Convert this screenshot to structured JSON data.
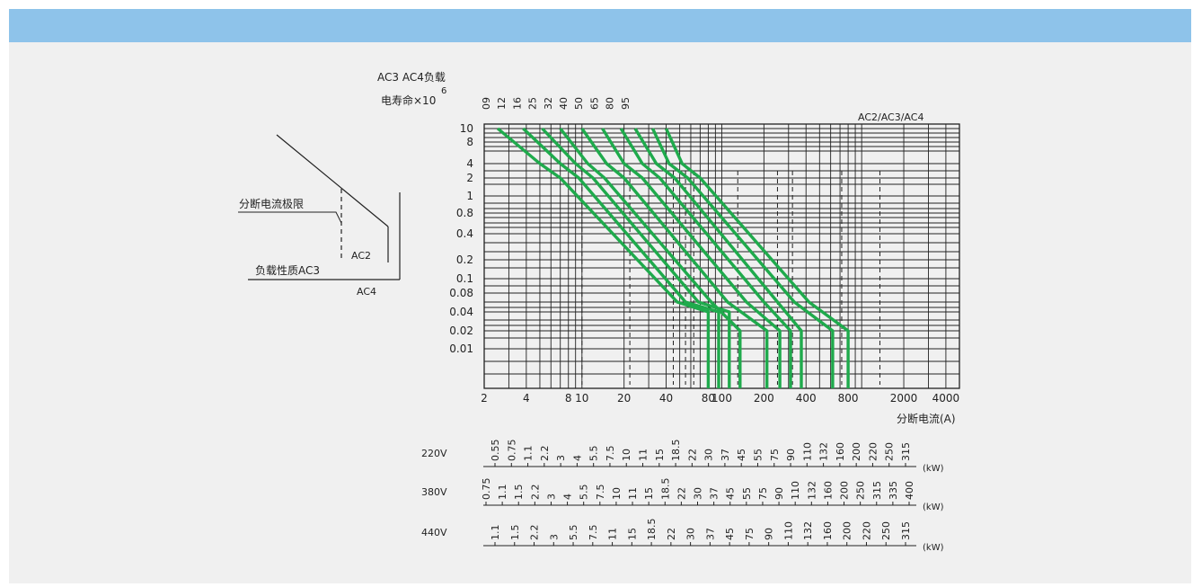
{
  "chart_data": {
    "type": "line",
    "title": "AC2/AC3/AC4",
    "y_title_1": "AC3  AC4负载",
    "y_title_2": "电寿命×10",
    "y_title_exp": "6",
    "xlabel": "分断电流(A)",
    "x_scale": "log",
    "xlim": [
      2,
      5000
    ],
    "y_ticks": [
      "10",
      "8",
      "4",
      "2",
      "1",
      "0.8",
      "0.4",
      "0.2",
      "0.1",
      "0.08",
      "0.04",
      "0.02",
      "0.01"
    ],
    "x_ticks": [
      {
        "v": 2,
        "label": "2"
      },
      {
        "v": 4,
        "label": "4"
      },
      {
        "v": 8,
        "label": "8"
      },
      {
        "v": 10,
        "label": "10"
      },
      {
        "v": 20,
        "label": "20"
      },
      {
        "v": 40,
        "label": "40"
      },
      {
        "v": 80,
        "label": "80"
      },
      {
        "v": 100,
        "label": "100"
      },
      {
        "v": 200,
        "label": "200"
      },
      {
        "v": 400,
        "label": "400"
      },
      {
        "v": 800,
        "label": "800"
      },
      {
        "v": 2000,
        "label": "2000"
      },
      {
        "v": 4000,
        "label": "4000"
      }
    ],
    "ratings": [
      "09",
      "12",
      "16",
      "25",
      "32",
      "40",
      "50",
      "65",
      "80",
      "95"
    ],
    "grid": true,
    "series_color": "#1faa4c",
    "series": [
      {
        "rating": "09",
        "points": [
          [
            2.5,
            10
          ],
          [
            5,
            4
          ],
          [
            7,
            2
          ],
          [
            48,
            0.06
          ],
          [
            80,
            0.04
          ],
          [
            80,
            0.0
          ]
        ]
      },
      {
        "rating": "12",
        "points": [
          [
            3.8,
            10
          ],
          [
            7,
            4
          ],
          [
            9.5,
            2
          ],
          [
            55,
            0.06
          ],
          [
            95,
            0.04
          ],
          [
            95,
            0.0
          ]
        ]
      },
      {
        "rating": "16",
        "points": [
          [
            5.2,
            10
          ],
          [
            9,
            4
          ],
          [
            12,
            2
          ],
          [
            68,
            0.06
          ],
          [
            113,
            0.04
          ],
          [
            113,
            0.0
          ]
        ]
      },
      {
        "rating": "25",
        "points": [
          [
            7,
            10
          ],
          [
            11,
            4
          ],
          [
            14.5,
            2
          ],
          [
            84,
            0.06
          ],
          [
            135,
            0.02
          ],
          [
            135,
            0.0
          ]
        ]
      },
      {
        "rating": "32",
        "points": [
          [
            10,
            10
          ],
          [
            15,
            4
          ],
          [
            20,
            2
          ],
          [
            110,
            0.06
          ],
          [
            210,
            0.02
          ],
          [
            210,
            0.0
          ]
        ]
      },
      {
        "rating": "40",
        "points": [
          [
            14,
            10
          ],
          [
            20,
            4
          ],
          [
            27,
            2
          ],
          [
            150,
            0.06
          ],
          [
            260,
            0.02
          ],
          [
            260,
            0.0
          ]
        ]
      },
      {
        "rating": "50",
        "points": [
          [
            19,
            10
          ],
          [
            27,
            4
          ],
          [
            36,
            2
          ],
          [
            200,
            0.06
          ],
          [
            310,
            0.02
          ],
          [
            310,
            0.0
          ]
        ]
      },
      {
        "rating": "65",
        "points": [
          [
            24,
            10
          ],
          [
            34,
            4
          ],
          [
            46,
            2
          ],
          [
            250,
            0.06
          ],
          [
            370,
            0.02
          ],
          [
            370,
            0.0
          ]
        ]
      },
      {
        "rating": "80",
        "points": [
          [
            32,
            10
          ],
          [
            42,
            4
          ],
          [
            57,
            2
          ],
          [
            330,
            0.06
          ],
          [
            620,
            0.02
          ],
          [
            620,
            0.0
          ]
        ]
      },
      {
        "rating": "95",
        "points": [
          [
            40,
            10
          ],
          [
            52,
            4
          ],
          [
            70,
            2
          ],
          [
            420,
            0.06
          ],
          [
            800,
            0.02
          ],
          [
            800,
            0.0
          ]
        ]
      }
    ],
    "power_scales": [
      {
        "voltage": "220V",
        "unit": "(kW)",
        "values": [
          "0.55",
          "0.75",
          "1.1",
          "2.2",
          "3",
          "4",
          "5.5",
          "7.5",
          "10",
          "11",
          "15",
          "18.5",
          "22",
          "30",
          "37",
          "45",
          "55",
          "75",
          "90",
          "110",
          "132",
          "160",
          "200",
          "220",
          "250",
          "315"
        ]
      },
      {
        "voltage": "380V",
        "unit": "(kW)",
        "values": [
          "0.75",
          "1.1",
          "1.5",
          "2.2",
          "3",
          "4",
          "5.5",
          "7.5",
          "10",
          "11",
          "15",
          "18.5",
          "22",
          "30",
          "37",
          "45",
          "55",
          "75",
          "90",
          "110",
          "132",
          "160",
          "200",
          "250",
          "315",
          "335",
          "400"
        ]
      },
      {
        "voltage": "440V",
        "unit": "(kW)",
        "values": [
          "1.1",
          "1.5",
          "2.2",
          "3",
          "5.5",
          "7.5",
          "11",
          "15",
          "18.5",
          "22",
          "30",
          "37",
          "45",
          "75",
          "90",
          "110",
          "132",
          "160",
          "200",
          "220",
          "250",
          "315"
        ]
      }
    ]
  },
  "legend_diagram": {
    "label_break_limit": "分断电流极限",
    "label_ac2": "AC2",
    "label_load_nature": "负载性质AC3",
    "label_ac4": "AC4"
  }
}
